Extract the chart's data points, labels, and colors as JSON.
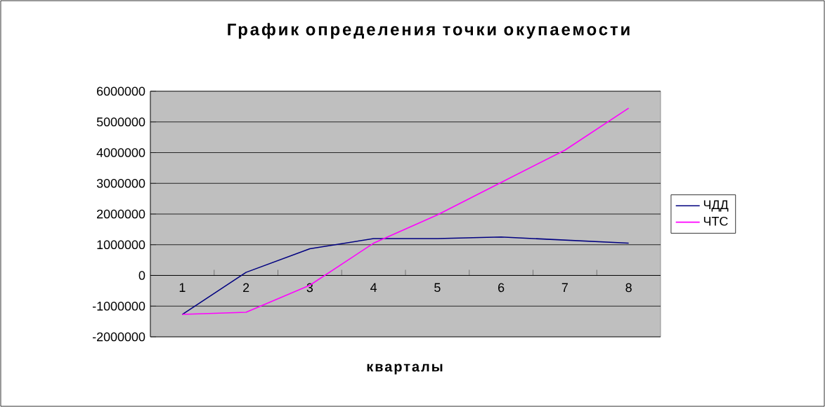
{
  "chart_data": {
    "type": "line",
    "title": "График определения точки окупаемости",
    "xlabel": "кварталы",
    "categories": [
      "1",
      "2",
      "3",
      "4",
      "5",
      "6",
      "7",
      "8"
    ],
    "series": [
      {
        "name": "ЧДД",
        "color": "#000080",
        "values": [
          -1270000,
          100000,
          870000,
          1200000,
          1200000,
          1250000,
          1150000,
          1050000
        ]
      },
      {
        "name": "ЧТС",
        "color": "#ff00ff",
        "values": [
          -1270000,
          -1200000,
          -320000,
          1050000,
          1970000,
          3030000,
          4080000,
          5450000
        ]
      }
    ],
    "ylim": [
      -2000000,
      6000000
    ],
    "yticks": [
      -2000000,
      -1000000,
      0,
      1000000,
      2000000,
      3000000,
      4000000,
      5000000,
      6000000
    ],
    "grid": "y",
    "legend": "right",
    "marker": "none",
    "line_style": "solid"
  }
}
